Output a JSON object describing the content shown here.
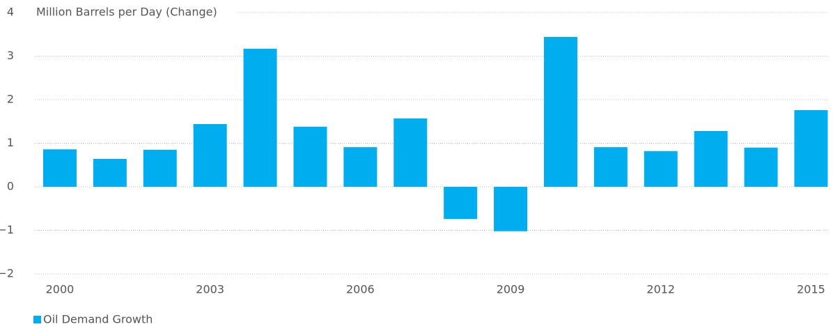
{
  "chart_data": {
    "type": "bar",
    "y_axis_label": "Million Barrels per Day (Change)",
    "categories": [
      "2000",
      null,
      null,
      "2003",
      null,
      null,
      "2006",
      null,
      null,
      "2009",
      null,
      null,
      "2012",
      null,
      null,
      "2015"
    ],
    "series": [
      {
        "name": "Oil Demand Growth",
        "color": "#00aeef",
        "values": [
          0.86,
          0.64,
          0.85,
          1.44,
          3.17,
          1.38,
          0.91,
          1.57,
          -0.74,
          -1.02,
          3.44,
          0.91,
          0.82,
          1.28,
          0.9,
          1.76
        ]
      }
    ],
    "ylim": [
      -2,
      4
    ],
    "yticks": [
      {
        "value": -2,
        "label": "−2"
      },
      {
        "value": -1,
        "label": "−1"
      },
      0,
      1,
      2,
      3,
      4
    ],
    "grid": true,
    "legend": "bottom-left"
  }
}
